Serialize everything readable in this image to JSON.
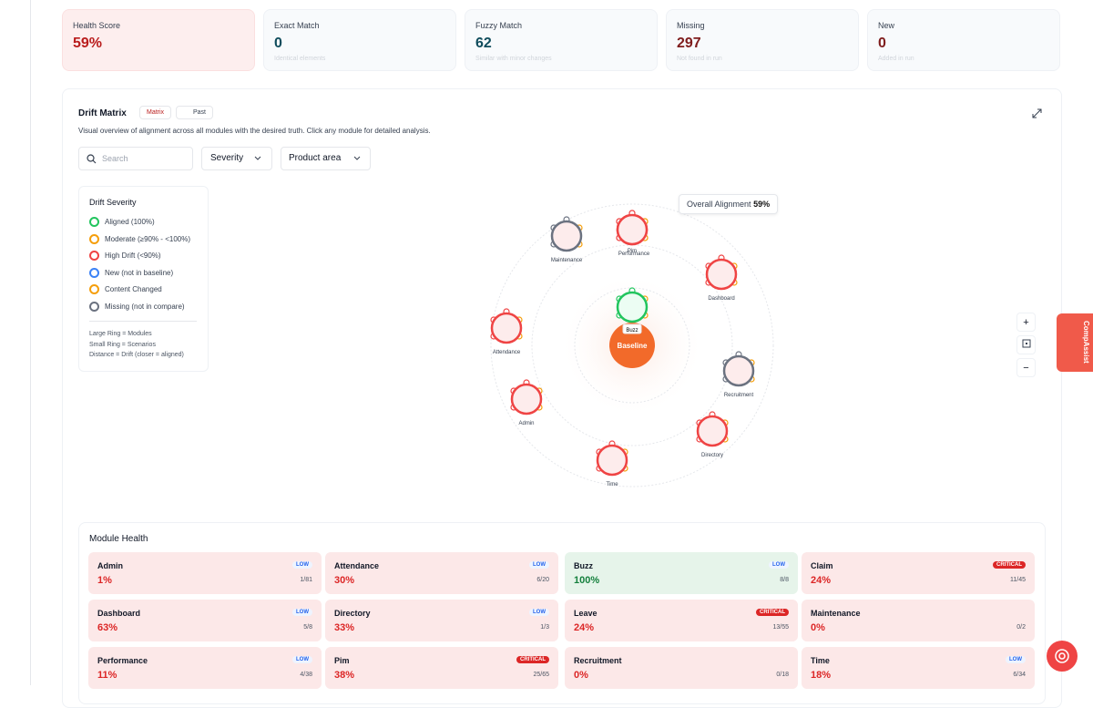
{
  "stats": [
    {
      "label": "Health Score",
      "value": "59%"
    },
    {
      "label": "Exact Match",
      "value": "0",
      "sub": "Identical elements"
    },
    {
      "label": "Fuzzy Match",
      "value": "62",
      "sub": "Similar with minor changes"
    },
    {
      "label": "Missing",
      "value": "297",
      "sub": "Not found in run"
    },
    {
      "label": "New",
      "value": "0",
      "sub": "Added in run"
    }
  ],
  "drift": {
    "title": "Drift Matrix",
    "tabs": [
      "Matrix",
      "Past"
    ],
    "description": "Visual overview of alignment across all modules with the desired truth. Click any module for detailed analysis.",
    "search": "Search",
    "filters": [
      "Severity",
      "Product area"
    ],
    "legend": {
      "title": "Drift Severity",
      "items": [
        {
          "label": "Aligned (100%)",
          "color": "#22c55e"
        },
        {
          "label": "Moderate (≥90% - <100%)",
          "color": "#f59e0b"
        },
        {
          "label": "High Drift (<90%)",
          "color": "#ef4444"
        },
        {
          "label": "New (not in baseline)",
          "color": "#3b82f6"
        },
        {
          "label": "Content Changed",
          "color": "#f59e0b"
        },
        {
          "label": "Missing (not in compare)",
          "color": "#6b7280"
        }
      ],
      "notes": [
        "Large Ring = Modules",
        "Small Ring = Scenarios",
        "Distance = Drift (closer = aligned)"
      ]
    },
    "overall": {
      "label": "Overall Alignment",
      "value": "59%"
    },
    "center": "Baseline",
    "nodes": [
      {
        "label": "Buzz",
        "status": "aligned"
      },
      {
        "label": "Performance",
        "status": "high"
      },
      {
        "label": "Pim",
        "status": "high"
      },
      {
        "label": "Maintenance",
        "status": "missing"
      },
      {
        "label": "Dashboard",
        "status": "high"
      },
      {
        "label": "Attendance",
        "status": "high"
      },
      {
        "label": "Recruitment",
        "status": "missing"
      },
      {
        "label": "Admin",
        "status": "high"
      },
      {
        "label": "Directory",
        "status": "high"
      },
      {
        "label": "Time",
        "status": "high"
      }
    ],
    "zoom": [
      "+",
      "−"
    ]
  },
  "health": {
    "title": "Module Health",
    "modules": [
      {
        "name": "Admin",
        "pct": "1%",
        "badge": "LOW",
        "count": "1/81"
      },
      {
        "name": "Attendance",
        "pct": "30%",
        "badge": "LOW",
        "count": "6/20"
      },
      {
        "name": "Buzz",
        "pct": "100%",
        "badge": "LOW",
        "count": "8/8"
      },
      {
        "name": "Claim",
        "pct": "24%",
        "badge": "CRITICAL",
        "count": "11/45"
      },
      {
        "name": "Dashboard",
        "pct": "63%",
        "badge": "LOW",
        "count": "5/8"
      },
      {
        "name": "Directory",
        "pct": "33%",
        "badge": "LOW",
        "count": "1/3"
      },
      {
        "name": "Leave",
        "pct": "24%",
        "badge": "CRITICAL",
        "count": "13/55"
      },
      {
        "name": "Maintenance",
        "pct": "0%",
        "count": "0/2"
      },
      {
        "name": "Performance",
        "pct": "11%",
        "badge": "LOW",
        "count": "4/38"
      },
      {
        "name": "Pim",
        "pct": "38%",
        "badge": "CRITICAL",
        "count": "25/65"
      },
      {
        "name": "Recruitment",
        "pct": "0%",
        "count": "0/18"
      },
      {
        "name": "Time",
        "pct": "18%",
        "badge": "LOW",
        "count": "6/34"
      }
    ]
  },
  "assistant": "CompAssist"
}
